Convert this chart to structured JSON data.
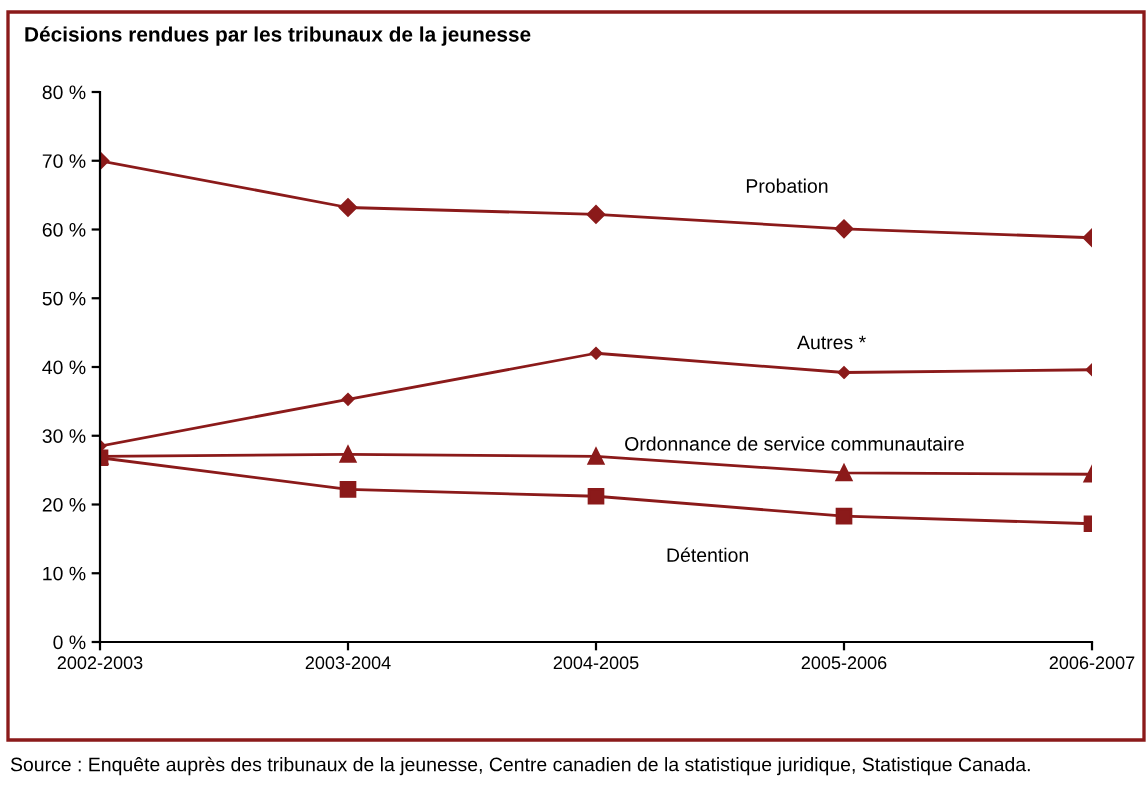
{
  "chart_data": {
    "type": "line",
    "title": "Décisions rendues par les tribunaux de la jeunesse",
    "categories": [
      "2002-2003",
      "2003-2004",
      "2004-2005",
      "2005-2006",
      "2006-2007"
    ],
    "series": [
      {
        "name": "Probation",
        "color": "#8b1a1a",
        "marker": "diamond",
        "values": [
          70,
          63.2,
          62.2,
          60.1,
          58.8
        ]
      },
      {
        "name": "Autres *",
        "color": "#8b1a1a",
        "marker": "diamond",
        "values": [
          28.5,
          35.3,
          42,
          39.2,
          39.6
        ]
      },
      {
        "name": "Ordonnance de service communautaire",
        "color": "#8b1a1a",
        "marker": "triangle",
        "values": [
          27,
          27.3,
          27,
          24.6,
          24.4
        ]
      },
      {
        "name": "Détention",
        "color": "#8b1a1a",
        "marker": "square",
        "values": [
          26.8,
          22.2,
          21.2,
          18.3,
          17.2
        ]
      }
    ],
    "ylim": [
      0,
      80
    ],
    "yticks": [
      {
        "value": 0,
        "label": "0 %"
      },
      {
        "value": 10,
        "label": "10 %"
      },
      {
        "value": 20,
        "label": "20 %"
      },
      {
        "value": 30,
        "label": "30 %"
      },
      {
        "value": 40,
        "label": "40 %"
      },
      {
        "value": 50,
        "label": "50 %"
      },
      {
        "value": 60,
        "label": "60 %"
      },
      {
        "value": 70,
        "label": "70 %"
      },
      {
        "value": 80,
        "label": "80 %"
      }
    ],
    "grid": false,
    "legend": false,
    "annotations": [
      "Source : Enquête auprès des tribunaux de la jeunesse, Centre canadien de la statistique juridique, Statistique Canada."
    ]
  }
}
